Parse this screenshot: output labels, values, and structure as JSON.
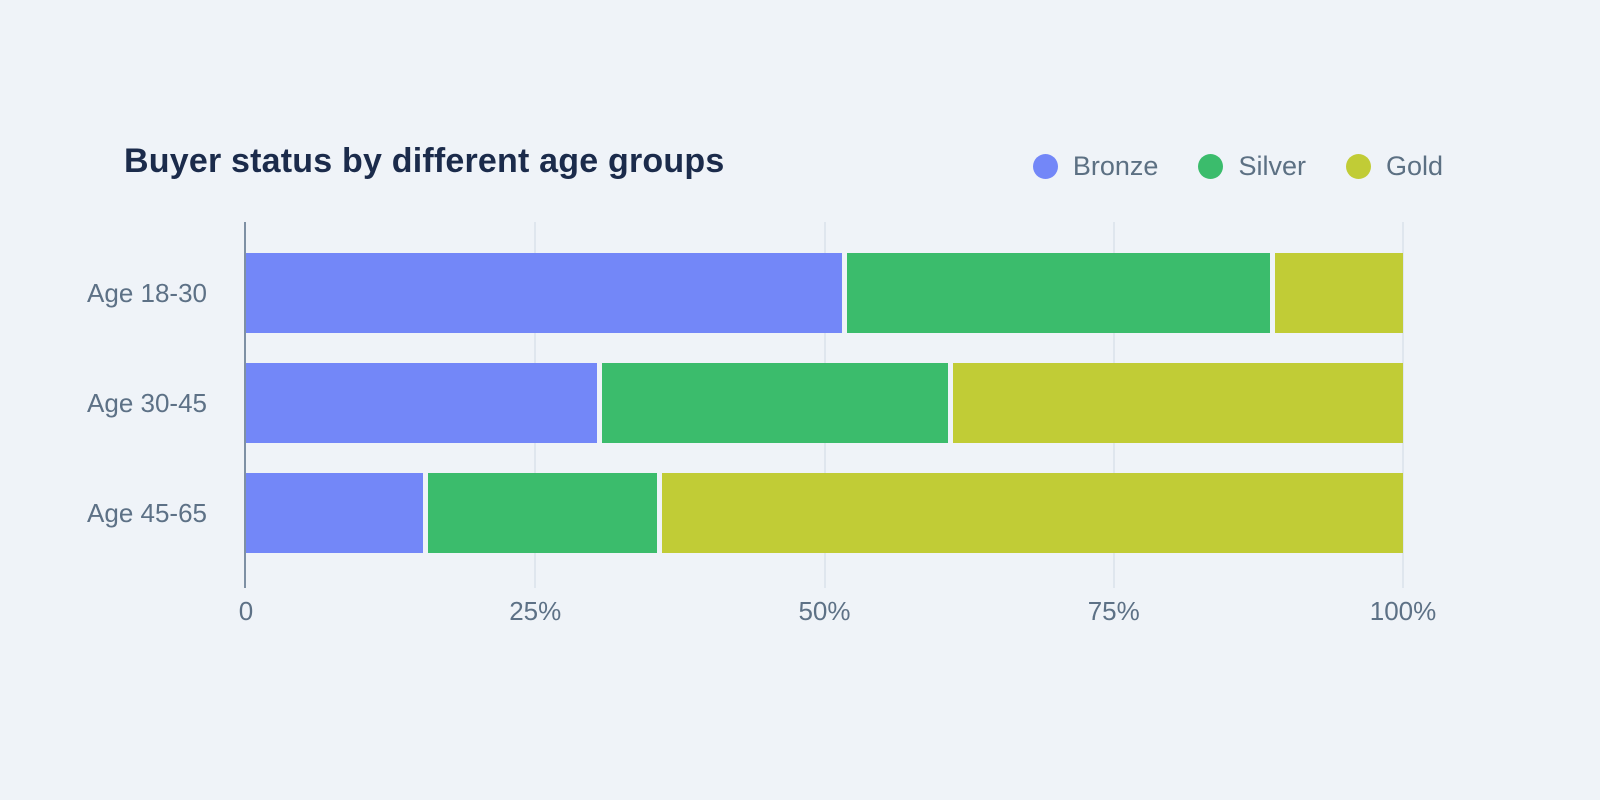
{
  "chart_data": {
    "type": "bar",
    "orientation": "horizontal",
    "stacked": true,
    "unit": "percent",
    "title": "Buyer status by different age groups",
    "categories": [
      "Age 18-30",
      "Age 30-45",
      "Age 45-65"
    ],
    "series": [
      {
        "name": "Bronze",
        "color": "#7387F8",
        "values": [
          51.5,
          30.3,
          15.3
        ]
      },
      {
        "name": "Silver",
        "color": "#3BBC6C",
        "values": [
          37.0,
          30.4,
          20.2
        ]
      },
      {
        "name": "Gold",
        "color": "#C1CC36",
        "values": [
          11.5,
          39.3,
          64.5
        ]
      }
    ],
    "x_axis": {
      "range": [
        0,
        100
      ],
      "ticks": [
        0,
        25,
        50,
        75,
        100
      ],
      "tick_labels": [
        "0",
        "25%",
        "50%",
        "75%",
        "100%"
      ],
      "gridlines_at": [
        25,
        50,
        75,
        100
      ]
    },
    "legend_position": "top-right",
    "grid": true
  },
  "colors": {
    "background": "#EFF3F8",
    "title_text": "#1B2B4B",
    "axis_text": "#5D7186",
    "legend_text": "#5C7083",
    "axis_line": "#7E90A4",
    "gridline": "#DFE6EE"
  }
}
